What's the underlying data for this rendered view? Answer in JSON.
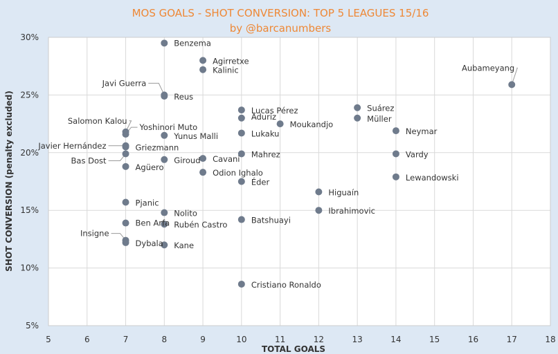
{
  "chart_data": {
    "type": "scatter",
    "title": "MOS GOALS - SHOT CONVERSION: TOP 5 LEAGUES 15/16",
    "subtitle": "by @barcanumbers",
    "xlabel": "TOTAL GOALS",
    "ylabel": "SHOT CONVERSION (penalty excluded)",
    "xlim": [
      5,
      18
    ],
    "ylim": [
      5,
      30
    ],
    "x_ticks": [
      5,
      6,
      7,
      8,
      9,
      10,
      11,
      12,
      13,
      14,
      15,
      16,
      17,
      18
    ],
    "y_ticks": [
      5,
      10,
      15,
      20,
      25,
      30
    ],
    "y_tick_suffix": "%",
    "grid": true,
    "colors": {
      "background": "#dde8f4",
      "plot_background": "#ffffff",
      "point": "#6f7b8c",
      "title": "#ee8836",
      "grid": "#d9d9d9",
      "axis_text": "#333333",
      "leader": "#999999"
    },
    "points": [
      {
        "name": "Benzema",
        "x": 8,
        "y": 29.5
      },
      {
        "name": "Agirretxe",
        "x": 9,
        "y": 28.0
      },
      {
        "name": "Kalinic",
        "x": 9,
        "y": 27.2
      },
      {
        "name": "Javi Guerra",
        "x": 8,
        "y": 25.0
      },
      {
        "name": "Reus",
        "x": 8,
        "y": 24.9
      },
      {
        "name": "Aubameyang",
        "x": 17,
        "y": 25.9
      },
      {
        "name": "Lucas Pérez",
        "x": 10,
        "y": 23.7
      },
      {
        "name": "Aduriz",
        "x": 10,
        "y": 23.0
      },
      {
        "name": "Moukandjo",
        "x": 11,
        "y": 22.5
      },
      {
        "name": "Suárez",
        "x": 13,
        "y": 23.9
      },
      {
        "name": "Müller",
        "x": 13,
        "y": 23.0
      },
      {
        "name": "Neymar",
        "x": 14,
        "y": 21.9
      },
      {
        "name": "Salomon Kalou",
        "x": 7,
        "y": 21.8
      },
      {
        "name": "Yoshinori Muto",
        "x": 7,
        "y": 21.6
      },
      {
        "name": "Yunus Malli",
        "x": 8,
        "y": 21.5
      },
      {
        "name": "Lukaku",
        "x": 10,
        "y": 21.7
      },
      {
        "name": "Javier Hernández",
        "x": 7,
        "y": 20.6
      },
      {
        "name": "Griezmann",
        "x": 7,
        "y": 20.5
      },
      {
        "name": "Bas Dost",
        "x": 7,
        "y": 19.9
      },
      {
        "name": "Mahrez",
        "x": 10,
        "y": 19.9
      },
      {
        "name": "Vardy",
        "x": 14,
        "y": 19.9
      },
      {
        "name": "Cavani",
        "x": 9,
        "y": 19.5
      },
      {
        "name": "Giroud",
        "x": 8,
        "y": 19.4
      },
      {
        "name": "Agüero",
        "x": 7,
        "y": 18.8
      },
      {
        "name": "Odion Ighalo",
        "x": 9,
        "y": 18.3
      },
      {
        "name": "Éder",
        "x": 10,
        "y": 17.5
      },
      {
        "name": "Lewandowski",
        "x": 14,
        "y": 17.9
      },
      {
        "name": "Higuaín",
        "x": 12,
        "y": 16.6
      },
      {
        "name": "Pjanic",
        "x": 7,
        "y": 15.7
      },
      {
        "name": "Ibrahimovic",
        "x": 12,
        "y": 15.0
      },
      {
        "name": "Nolito",
        "x": 8,
        "y": 14.8
      },
      {
        "name": "Batshuayi",
        "x": 10,
        "y": 14.2
      },
      {
        "name": "Ben Arfa",
        "x": 7,
        "y": 13.9
      },
      {
        "name": "Rubén Castro",
        "x": 8,
        "y": 13.8
      },
      {
        "name": "Insigne",
        "x": 7,
        "y": 12.4
      },
      {
        "name": "Dybala",
        "x": 7,
        "y": 12.2
      },
      {
        "name": "Kane",
        "x": 8,
        "y": 12.0
      },
      {
        "name": "Cristiano Ronaldo",
        "x": 10,
        "y": 8.6
      }
    ]
  }
}
